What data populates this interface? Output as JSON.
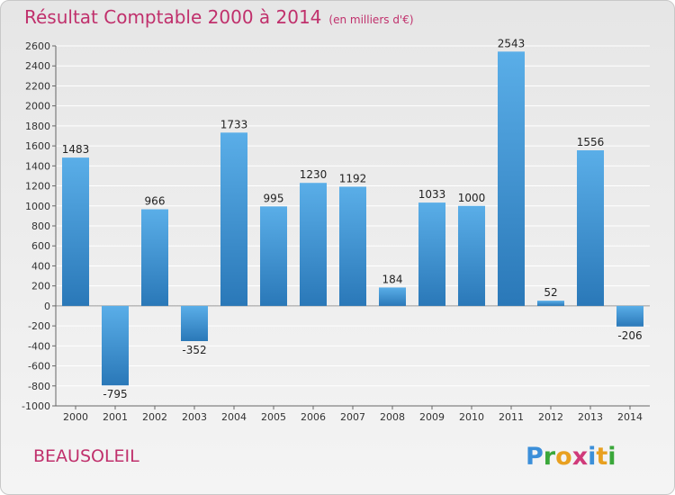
{
  "header": {
    "title": "Résultat Comptable 2000 à 2014",
    "unit": "(en milliers d'€)"
  },
  "footer": {
    "commune": "BEAUSOLEIL",
    "logo_text": "Proxiti"
  },
  "colors": {
    "bar_top": "#5aaee8",
    "bar_bottom": "#2a78b8",
    "title": "#c0306c",
    "grid": "#ffffff"
  },
  "chart_data": {
    "type": "bar",
    "categories": [
      "2000",
      "2001",
      "2002",
      "2003",
      "2004",
      "2005",
      "2006",
      "2007",
      "2008",
      "2009",
      "2010",
      "2011",
      "2012",
      "2013",
      "2014"
    ],
    "values": [
      1483,
      -795,
      966,
      -352,
      1733,
      995,
      1230,
      1192,
      184,
      1033,
      1000,
      2543,
      52,
      1556,
      -206
    ],
    "ylim": [
      -1000,
      2600
    ],
    "yticks": [
      -1000,
      -800,
      -600,
      -400,
      -200,
      0,
      200,
      400,
      600,
      800,
      1000,
      1200,
      1400,
      1600,
      1800,
      2000,
      2200,
      2400,
      2600
    ],
    "grid": true,
    "title": "Résultat Comptable 2000 à 2014",
    "xlabel": "",
    "ylabel": ""
  }
}
